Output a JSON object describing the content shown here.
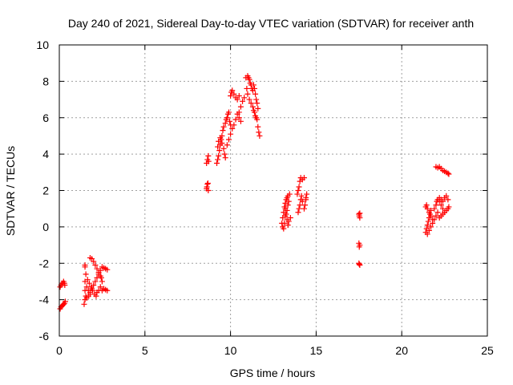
{
  "chart_data": {
    "type": "scatter",
    "title": "Day 240 of 2021, Sidereal Day-to-day VTEC variation (SDTVAR) for receiver anth",
    "xlabel": "GPS time / hours",
    "ylabel": "SDTVAR / TECUs",
    "xlim": [
      0,
      25
    ],
    "ylim": [
      -6,
      10
    ],
    "xticks": [
      "0",
      "5",
      "10",
      "15",
      "20",
      "25"
    ],
    "yticks": [
      "-6",
      "-4",
      "-2",
      "0",
      "2",
      "4",
      "6",
      "8",
      "10"
    ],
    "grid": true,
    "marker": "+",
    "colors": {
      "series": "#ff0000",
      "grid": "#a0a0a0",
      "axis": "#000000"
    },
    "series": [
      {
        "name": "SDTVAR",
        "points": [
          [
            0.05,
            -4.5
          ],
          [
            0.1,
            -4.4
          ],
          [
            0.15,
            -4.35
          ],
          [
            0.2,
            -4.3
          ],
          [
            0.25,
            -4.25
          ],
          [
            0.3,
            -4.2
          ],
          [
            0.35,
            -4.1
          ],
          [
            0.05,
            -3.3
          ],
          [
            0.1,
            -3.2
          ],
          [
            0.15,
            -3.1
          ],
          [
            0.2,
            -3.1
          ],
          [
            0.25,
            -3.0
          ],
          [
            0.3,
            -3.1
          ],
          [
            0.32,
            -3.2
          ],
          [
            1.45,
            -4.25
          ],
          [
            1.5,
            -4.0
          ],
          [
            1.55,
            -3.8
          ],
          [
            1.5,
            -3.5
          ],
          [
            1.5,
            -3.0
          ],
          [
            1.55,
            -2.6
          ],
          [
            1.5,
            -2.2
          ],
          [
            1.5,
            -2.1
          ],
          [
            1.6,
            -3.3
          ],
          [
            1.7,
            -3.5
          ],
          [
            1.8,
            -3.6
          ],
          [
            1.9,
            -3.4
          ],
          [
            2.0,
            -3.2
          ],
          [
            2.1,
            -3.0
          ],
          [
            2.2,
            -2.8
          ],
          [
            2.3,
            -2.6
          ],
          [
            2.4,
            -2.4
          ],
          [
            1.65,
            -2.9
          ],
          [
            1.75,
            -3.1
          ],
          [
            1.85,
            -3.3
          ],
          [
            1.95,
            -3.5
          ],
          [
            2.05,
            -3.7
          ],
          [
            2.15,
            -3.8
          ],
          [
            1.8,
            -1.7
          ],
          [
            1.9,
            -1.75
          ],
          [
            2.0,
            -1.9
          ],
          [
            2.1,
            -2.1
          ],
          [
            2.2,
            -2.3
          ],
          [
            2.3,
            -2.5
          ],
          [
            2.4,
            -2.7
          ],
          [
            2.5,
            -2.2
          ],
          [
            2.6,
            -2.25
          ],
          [
            2.7,
            -2.3
          ],
          [
            2.8,
            -2.35
          ],
          [
            2.5,
            -3.5
          ],
          [
            2.6,
            -3.4
          ],
          [
            2.7,
            -3.45
          ],
          [
            2.8,
            -3.5
          ],
          [
            1.6,
            -3.9
          ],
          [
            1.7,
            -3.8
          ],
          [
            1.8,
            -3.7
          ],
          [
            2.2,
            -3.6
          ],
          [
            2.3,
            -3.5
          ],
          [
            2.4,
            -3.3
          ],
          [
            2.5,
            -3.0
          ],
          [
            2.45,
            -2.8
          ],
          [
            8.6,
            2.1
          ],
          [
            8.62,
            2.2
          ],
          [
            8.65,
            2.35
          ],
          [
            8.68,
            2.4
          ],
          [
            8.7,
            2.0
          ],
          [
            8.6,
            3.5
          ],
          [
            8.65,
            3.7
          ],
          [
            8.7,
            3.9
          ],
          [
            8.72,
            3.6
          ],
          [
            9.2,
            3.5
          ],
          [
            9.25,
            3.7
          ],
          [
            9.3,
            3.9
          ],
          [
            9.35,
            4.2
          ],
          [
            9.4,
            4.5
          ],
          [
            9.45,
            4.8
          ],
          [
            9.5,
            5.0
          ],
          [
            9.55,
            5.3
          ],
          [
            9.6,
            5.5
          ],
          [
            9.25,
            4.4
          ],
          [
            9.3,
            4.7
          ],
          [
            9.4,
            4.9
          ],
          [
            9.5,
            4.6
          ],
          [
            9.6,
            4.3
          ],
          [
            9.65,
            4.0
          ],
          [
            9.7,
            3.8
          ],
          [
            9.7,
            5.7
          ],
          [
            9.75,
            5.9
          ],
          [
            9.8,
            6.0
          ],
          [
            9.85,
            6.2
          ],
          [
            9.9,
            6.3
          ],
          [
            9.95,
            5.8
          ],
          [
            10.0,
            5.6
          ],
          [
            9.8,
            4.5
          ],
          [
            9.9,
            4.8
          ],
          [
            10.0,
            5.1
          ],
          [
            10.1,
            5.4
          ],
          [
            10.2,
            5.6
          ],
          [
            10.3,
            5.9
          ],
          [
            10.4,
            6.2
          ],
          [
            10.0,
            7.2
          ],
          [
            10.05,
            7.4
          ],
          [
            10.1,
            7.5
          ],
          [
            10.2,
            7.3
          ],
          [
            10.3,
            7.1
          ],
          [
            10.4,
            7.0
          ],
          [
            10.5,
            7.2
          ],
          [
            10.5,
            6.3
          ],
          [
            10.6,
            6.6
          ],
          [
            10.7,
            6.9
          ],
          [
            10.8,
            7.1
          ],
          [
            10.6,
            5.8
          ],
          [
            10.5,
            6.0
          ],
          [
            10.9,
            8.2
          ],
          [
            11.0,
            8.3
          ],
          [
            11.05,
            8.2
          ],
          [
            11.1,
            8.1
          ],
          [
            11.15,
            7.9
          ],
          [
            11.2,
            7.8
          ],
          [
            11.25,
            7.6
          ],
          [
            10.95,
            7.6
          ],
          [
            11.0,
            7.3
          ],
          [
            11.1,
            7.0
          ],
          [
            11.2,
            6.8
          ],
          [
            11.3,
            6.6
          ],
          [
            11.35,
            6.4
          ],
          [
            11.3,
            7.5
          ],
          [
            11.35,
            7.8
          ],
          [
            11.4,
            7.6
          ],
          [
            11.45,
            7.3
          ],
          [
            11.5,
            7.0
          ],
          [
            11.55,
            6.8
          ],
          [
            11.6,
            6.5
          ],
          [
            11.4,
            6.3
          ],
          [
            11.45,
            6.1
          ],
          [
            11.5,
            6.0
          ],
          [
            11.55,
            5.9
          ],
          [
            11.6,
            5.5
          ],
          [
            11.65,
            5.2
          ],
          [
            11.7,
            5.0
          ],
          [
            13.0,
            0.2
          ],
          [
            13.05,
            0.5
          ],
          [
            13.1,
            0.8
          ],
          [
            13.15,
            1.1
          ],
          [
            13.2,
            1.3
          ],
          [
            13.25,
            1.5
          ],
          [
            13.3,
            1.6
          ],
          [
            13.35,
            1.7
          ],
          [
            13.05,
            0.0
          ],
          [
            13.1,
            -0.1
          ],
          [
            13.15,
            0.2
          ],
          [
            13.2,
            0.6
          ],
          [
            13.3,
            0.9
          ],
          [
            13.35,
            1.2
          ],
          [
            13.4,
            1.4
          ],
          [
            13.45,
            1.8
          ],
          [
            13.2,
            1.0
          ],
          [
            13.25,
            0.7
          ],
          [
            13.3,
            0.4
          ],
          [
            13.35,
            0.1
          ],
          [
            13.4,
            0.3
          ],
          [
            13.5,
            0.5
          ],
          [
            13.9,
            1.8
          ],
          [
            13.95,
            2.0
          ],
          [
            14.0,
            2.2
          ],
          [
            14.05,
            2.5
          ],
          [
            14.1,
            2.7
          ],
          [
            14.2,
            2.6
          ],
          [
            14.3,
            2.7
          ],
          [
            13.95,
            0.8
          ],
          [
            14.0,
            1.0
          ],
          [
            14.05,
            1.2
          ],
          [
            14.1,
            1.5
          ],
          [
            14.15,
            1.7
          ],
          [
            14.2,
            1.4
          ],
          [
            14.3,
            1.0
          ],
          [
            14.35,
            1.2
          ],
          [
            14.4,
            1.5
          ],
          [
            14.45,
            1.8
          ],
          [
            14.4,
            1.6
          ],
          [
            17.5,
            0.7
          ],
          [
            17.52,
            0.6
          ],
          [
            17.55,
            0.5
          ],
          [
            17.55,
            0.75
          ],
          [
            17.5,
            -0.9
          ],
          [
            17.52,
            -1.1
          ],
          [
            17.55,
            -1.0
          ],
          [
            17.5,
            -2.0
          ],
          [
            17.52,
            -2.05
          ],
          [
            17.55,
            -2.1
          ],
          [
            21.4,
            -0.3
          ],
          [
            21.45,
            -0.1
          ],
          [
            21.5,
            0.1
          ],
          [
            21.55,
            0.3
          ],
          [
            21.6,
            0.5
          ],
          [
            21.65,
            0.7
          ],
          [
            21.7,
            0.9
          ],
          [
            21.5,
            -0.4
          ],
          [
            21.6,
            -0.2
          ],
          [
            21.7,
            0.0
          ],
          [
            21.8,
            0.2
          ],
          [
            21.9,
            0.4
          ],
          [
            22.0,
            0.6
          ],
          [
            22.1,
            0.8
          ],
          [
            21.4,
            1.1
          ],
          [
            21.45,
            1.2
          ],
          [
            21.5,
            1.0
          ],
          [
            21.6,
            0.8
          ],
          [
            21.7,
            0.6
          ],
          [
            21.8,
            0.4
          ],
          [
            21.9,
            1.0
          ],
          [
            22.0,
            1.2
          ],
          [
            22.05,
            1.4
          ],
          [
            22.1,
            1.5
          ],
          [
            22.2,
            1.4
          ],
          [
            22.3,
            1.2
          ],
          [
            22.4,
            1.0
          ],
          [
            22.2,
            0.5
          ],
          [
            22.3,
            0.6
          ],
          [
            22.4,
            0.7
          ],
          [
            22.5,
            0.8
          ],
          [
            22.6,
            0.9
          ],
          [
            22.7,
            1.0
          ],
          [
            22.75,
            1.1
          ],
          [
            22.2,
            1.6
          ],
          [
            22.3,
            1.5
          ],
          [
            22.4,
            1.4
          ],
          [
            22.5,
            1.6
          ],
          [
            22.6,
            1.7
          ],
          [
            22.7,
            1.5
          ],
          [
            22.0,
            3.3
          ],
          [
            22.1,
            3.25
          ],
          [
            22.2,
            3.3
          ],
          [
            22.3,
            3.2
          ],
          [
            22.4,
            3.1
          ],
          [
            22.5,
            3.05
          ],
          [
            22.6,
            3.0
          ],
          [
            22.7,
            2.95
          ],
          [
            22.75,
            2.9
          ]
        ]
      }
    ]
  }
}
